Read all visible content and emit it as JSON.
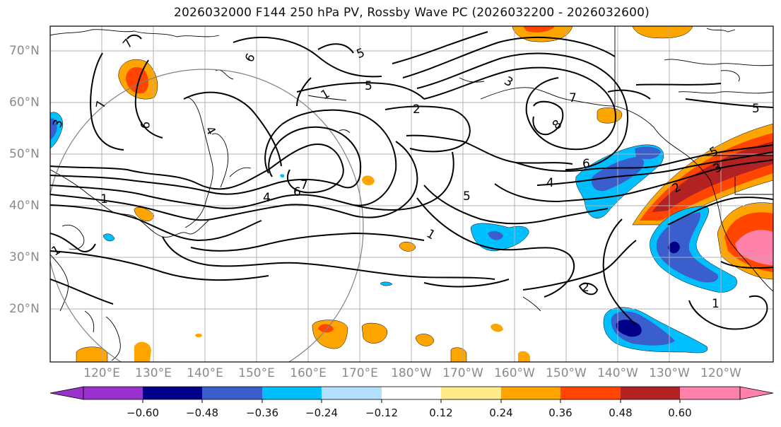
{
  "title": "2026032000 F144 250 hPa PV, Rossby Wave PC (2026032200 - 2026032600)",
  "lat_labels": [
    "70°N",
    "60°N",
    "50°N",
    "40°N",
    "30°N",
    "20°N"
  ],
  "lon_labels": [
    "120°E",
    "130°E",
    "140°E",
    "150°E",
    "160°E",
    "170°E",
    "180°W",
    "170°W",
    "160°W",
    "150°W",
    "140°W",
    "130°W",
    "120°W"
  ],
  "contour_labels": [
    "7",
    "6",
    "6",
    "4",
    "3",
    "1",
    "7",
    "5",
    "2",
    "3",
    "7",
    "8",
    "6",
    "4",
    "5",
    "7",
    "6",
    "4",
    "1",
    "5",
    "3",
    "2",
    "2",
    "1",
    "1",
    "5",
    "5",
    "1"
  ],
  "colorbar": {
    "labels": [
      "−0.60",
      "−0.48",
      "−0.36",
      "−0.24",
      "−0.12",
      "0.12",
      "0.24",
      "0.36",
      "0.48",
      "0.60"
    ],
    "colors": [
      "#9932cc",
      "#00008b",
      "#3a5fcd",
      "#00bfff",
      "#b3e0ff",
      "#ffffff",
      "#ffeb8a",
      "#ffa500",
      "#ff4500",
      "#b22222",
      "#ff82ab"
    ]
  },
  "colors": {
    "contour": "#000000",
    "coast": "#000000",
    "grid": "#b0b0b0",
    "circle": "#808080"
  }
}
